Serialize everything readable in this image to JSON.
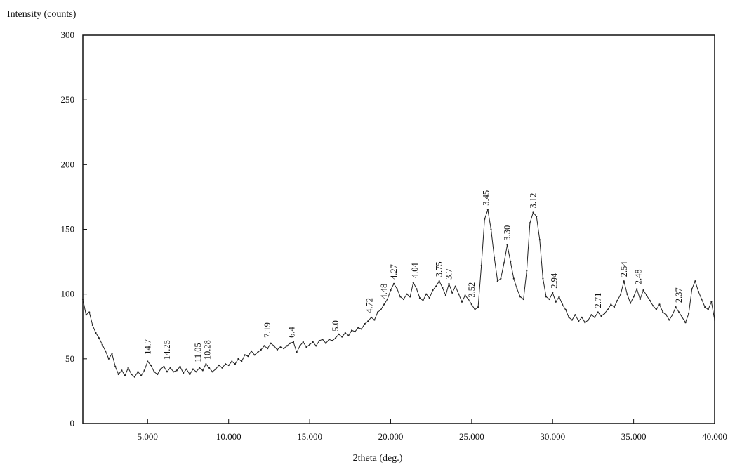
{
  "chart_data": {
    "type": "line",
    "title": "",
    "ylabel": "Intensity (counts)",
    "xlabel": "2theta (deg.)",
    "xlim": [
      1.0,
      40.0
    ],
    "ylim": [
      0,
      300
    ],
    "grid": false,
    "y_ticks": [
      {
        "value": 0,
        "label": "0"
      },
      {
        "value": 50,
        "label": "50"
      },
      {
        "value": 100,
        "label": "100"
      },
      {
        "value": 150,
        "label": "150"
      },
      {
        "value": 200,
        "label": "200"
      },
      {
        "value": 250,
        "label": "250"
      },
      {
        "value": 300,
        "label": "300"
      }
    ],
    "x_ticks": [
      {
        "value": 5,
        "label": "5.000"
      },
      {
        "value": 10,
        "label": "10.000"
      },
      {
        "value": 15,
        "label": "15.000"
      },
      {
        "value": 20,
        "label": "20.000"
      },
      {
        "value": 25,
        "label": "25.000"
      },
      {
        "value": 30,
        "label": "30.000"
      },
      {
        "value": 35,
        "label": "35.000"
      },
      {
        "value": 40,
        "label": "40.000"
      }
    ],
    "series": [
      {
        "color": "#222222",
        "points": [
          [
            1.0,
            96
          ],
          [
            1.2,
            84
          ],
          [
            1.4,
            86
          ],
          [
            1.6,
            76
          ],
          [
            1.8,
            70
          ],
          [
            2.0,
            66
          ],
          [
            2.2,
            61
          ],
          [
            2.4,
            56
          ],
          [
            2.6,
            50
          ],
          [
            2.8,
            54
          ],
          [
            3.0,
            44
          ],
          [
            3.2,
            38
          ],
          [
            3.4,
            41
          ],
          [
            3.6,
            37
          ],
          [
            3.8,
            43
          ],
          [
            4.0,
            38
          ],
          [
            4.2,
            36
          ],
          [
            4.4,
            40
          ],
          [
            4.6,
            37
          ],
          [
            4.8,
            41
          ],
          [
            5.0,
            48
          ],
          [
            5.2,
            45
          ],
          [
            5.4,
            40
          ],
          [
            5.6,
            38
          ],
          [
            5.8,
            42
          ],
          [
            6.0,
            44
          ],
          [
            6.2,
            40
          ],
          [
            6.4,
            43
          ],
          [
            6.6,
            40
          ],
          [
            6.8,
            41
          ],
          [
            7.0,
            44
          ],
          [
            7.2,
            39
          ],
          [
            7.4,
            42
          ],
          [
            7.6,
            38
          ],
          [
            7.8,
            42
          ],
          [
            8.0,
            40
          ],
          [
            8.2,
            43
          ],
          [
            8.4,
            41
          ],
          [
            8.6,
            46
          ],
          [
            8.8,
            43
          ],
          [
            9.0,
            40
          ],
          [
            9.2,
            42
          ],
          [
            9.4,
            45
          ],
          [
            9.6,
            43
          ],
          [
            9.8,
            46
          ],
          [
            10.0,
            45
          ],
          [
            10.2,
            48
          ],
          [
            10.4,
            46
          ],
          [
            10.6,
            50
          ],
          [
            10.8,
            48
          ],
          [
            11.0,
            53
          ],
          [
            11.2,
            52
          ],
          [
            11.4,
            56
          ],
          [
            11.6,
            53
          ],
          [
            11.8,
            55
          ],
          [
            12.0,
            57
          ],
          [
            12.2,
            60
          ],
          [
            12.4,
            58
          ],
          [
            12.6,
            62
          ],
          [
            12.8,
            60
          ],
          [
            13.0,
            57
          ],
          [
            13.2,
            59
          ],
          [
            13.4,
            58
          ],
          [
            13.6,
            60
          ],
          [
            13.8,
            62
          ],
          [
            14.0,
            63
          ],
          [
            14.2,
            55
          ],
          [
            14.4,
            60
          ],
          [
            14.6,
            63
          ],
          [
            14.8,
            59
          ],
          [
            15.0,
            61
          ],
          [
            15.2,
            63
          ],
          [
            15.4,
            60
          ],
          [
            15.6,
            64
          ],
          [
            15.8,
            65
          ],
          [
            16.0,
            62
          ],
          [
            16.2,
            65
          ],
          [
            16.4,
            64
          ],
          [
            16.6,
            66
          ],
          [
            16.8,
            69
          ],
          [
            17.0,
            67
          ],
          [
            17.2,
            70
          ],
          [
            17.4,
            68
          ],
          [
            17.6,
            72
          ],
          [
            17.8,
            71
          ],
          [
            18.0,
            74
          ],
          [
            18.2,
            73
          ],
          [
            18.4,
            77
          ],
          [
            18.6,
            79
          ],
          [
            18.8,
            82
          ],
          [
            19.0,
            80
          ],
          [
            19.2,
            86
          ],
          [
            19.4,
            88
          ],
          [
            19.6,
            92
          ],
          [
            19.8,
            96
          ],
          [
            20.0,
            103
          ],
          [
            20.2,
            108
          ],
          [
            20.4,
            104
          ],
          [
            20.6,
            98
          ],
          [
            20.8,
            96
          ],
          [
            21.0,
            100
          ],
          [
            21.2,
            98
          ],
          [
            21.4,
            109
          ],
          [
            21.6,
            104
          ],
          [
            21.8,
            97
          ],
          [
            22.0,
            95
          ],
          [
            22.2,
            100
          ],
          [
            22.4,
            97
          ],
          [
            22.6,
            103
          ],
          [
            22.8,
            106
          ],
          [
            23.0,
            110
          ],
          [
            23.2,
            105
          ],
          [
            23.4,
            99
          ],
          [
            23.6,
            108
          ],
          [
            23.8,
            101
          ],
          [
            24.0,
            106
          ],
          [
            24.2,
            100
          ],
          [
            24.4,
            94
          ],
          [
            24.6,
            99
          ],
          [
            24.8,
            96
          ],
          [
            25.0,
            92
          ],
          [
            25.2,
            88
          ],
          [
            25.4,
            90
          ],
          [
            25.6,
            122
          ],
          [
            25.8,
            158
          ],
          [
            26.0,
            165
          ],
          [
            26.2,
            150
          ],
          [
            26.4,
            128
          ],
          [
            26.6,
            110
          ],
          [
            26.8,
            112
          ],
          [
            27.0,
            124
          ],
          [
            27.2,
            138
          ],
          [
            27.4,
            125
          ],
          [
            27.6,
            112
          ],
          [
            27.8,
            104
          ],
          [
            28.0,
            98
          ],
          [
            28.2,
            96
          ],
          [
            28.4,
            118
          ],
          [
            28.6,
            155
          ],
          [
            28.8,
            163
          ],
          [
            29.0,
            160
          ],
          [
            29.2,
            142
          ],
          [
            29.4,
            112
          ],
          [
            29.6,
            98
          ],
          [
            29.8,
            96
          ],
          [
            30.0,
            101
          ],
          [
            30.2,
            94
          ],
          [
            30.4,
            98
          ],
          [
            30.6,
            92
          ],
          [
            30.8,
            88
          ],
          [
            31.0,
            82
          ],
          [
            31.2,
            80
          ],
          [
            31.4,
            84
          ],
          [
            31.6,
            79
          ],
          [
            31.8,
            82
          ],
          [
            32.0,
            78
          ],
          [
            32.2,
            80
          ],
          [
            32.4,
            84
          ],
          [
            32.6,
            82
          ],
          [
            32.8,
            86
          ],
          [
            33.0,
            83
          ],
          [
            33.2,
            85
          ],
          [
            33.4,
            88
          ],
          [
            33.6,
            92
          ],
          [
            33.8,
            90
          ],
          [
            34.0,
            95
          ],
          [
            34.2,
            100
          ],
          [
            34.4,
            110
          ],
          [
            34.6,
            100
          ],
          [
            34.8,
            93
          ],
          [
            35.0,
            98
          ],
          [
            35.2,
            104
          ],
          [
            35.4,
            96
          ],
          [
            35.6,
            103
          ],
          [
            35.8,
            99
          ],
          [
            36.0,
            95
          ],
          [
            36.2,
            91
          ],
          [
            36.4,
            88
          ],
          [
            36.6,
            92
          ],
          [
            36.8,
            86
          ],
          [
            37.0,
            84
          ],
          [
            37.2,
            80
          ],
          [
            37.4,
            84
          ],
          [
            37.6,
            90
          ],
          [
            37.8,
            86
          ],
          [
            38.0,
            82
          ],
          [
            38.2,
            78
          ],
          [
            38.4,
            85
          ],
          [
            38.6,
            104
          ],
          [
            38.8,
            110
          ],
          [
            39.0,
            102
          ],
          [
            39.2,
            96
          ],
          [
            39.4,
            90
          ],
          [
            39.6,
            88
          ],
          [
            39.8,
            94
          ],
          [
            40.0,
            80
          ]
        ]
      }
    ],
    "annotations": [
      {
        "text": "14.7",
        "x": 5.0,
        "y": 50
      },
      {
        "text": "14.25",
        "x": 6.2,
        "y": 46
      },
      {
        "text": "11.05",
        "x": 8.1,
        "y": 44
      },
      {
        "text": "10.28",
        "x": 8.7,
        "y": 46
      },
      {
        "text": "7.19",
        "x": 12.4,
        "y": 63
      },
      {
        "text": "6.4",
        "x": 13.9,
        "y": 63
      },
      {
        "text": "5.0",
        "x": 16.6,
        "y": 68
      },
      {
        "text": "4.72",
        "x": 18.7,
        "y": 82
      },
      {
        "text": "4.48",
        "x": 19.6,
        "y": 93
      },
      {
        "text": "4.27",
        "x": 20.2,
        "y": 108
      },
      {
        "text": "4.04",
        "x": 21.5,
        "y": 109
      },
      {
        "text": "3.75",
        "x": 23.0,
        "y": 110
      },
      {
        "text": "3.7",
        "x": 23.6,
        "y": 108
      },
      {
        "text": "3.52",
        "x": 25.0,
        "y": 94
      },
      {
        "text": "3.45",
        "x": 25.9,
        "y": 165
      },
      {
        "text": "3.30",
        "x": 27.2,
        "y": 138
      },
      {
        "text": "3.12",
        "x": 28.8,
        "y": 163
      },
      {
        "text": "2.94",
        "x": 30.1,
        "y": 101
      },
      {
        "text": "2.71",
        "x": 32.8,
        "y": 86
      },
      {
        "text": "2.54",
        "x": 34.4,
        "y": 110
      },
      {
        "text": "2.48",
        "x": 35.3,
        "y": 104
      },
      {
        "text": "2.37",
        "x": 37.8,
        "y": 90
      }
    ]
  }
}
